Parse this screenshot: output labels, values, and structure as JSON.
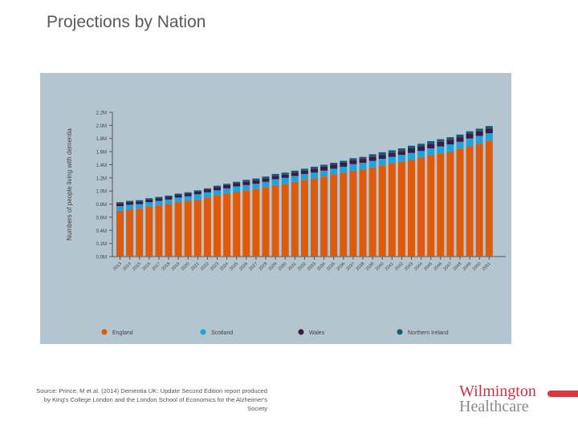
{
  "slide": {
    "title": "Projections by Nation",
    "source": "Source: Prince, M et al. (2014) Dementia UK: Update Second Edition report produced by King's College London and the London School of Economics for the Alzheimer's Society",
    "logo": {
      "line1": "Wilmington",
      "line2": "Healthcare"
    }
  },
  "chart_data": {
    "type": "bar",
    "stacked": true,
    "title": "",
    "xlabel": "",
    "ylabel": "Numbers of people living with dementia",
    "ylim": [
      0,
      2.2
    ],
    "yticks": [
      "0.0M",
      "0.2M",
      "0.4M",
      "0.6M",
      "0.8M",
      "1.0M",
      "1.2M",
      "1.4M",
      "1.6M",
      "1.8M",
      "2.0M",
      "2.2M"
    ],
    "legend_position": "bottom",
    "categories": [
      "2013",
      "2014",
      "2015",
      "2016",
      "2017",
      "2018",
      "2019",
      "2020",
      "2021",
      "2022",
      "2023",
      "2024",
      "2025",
      "2026",
      "2027",
      "2028",
      "2029",
      "2030",
      "2031",
      "2032",
      "2033",
      "2034",
      "2035",
      "2036",
      "2037",
      "2038",
      "2039",
      "2040",
      "2041",
      "2042",
      "2043",
      "2044",
      "2045",
      "2046",
      "2047",
      "2048",
      "2049",
      "2050",
      "2051"
    ],
    "series": [
      {
        "name": "England",
        "color": "#e05a0c",
        "values": [
          0.7,
          0.72,
          0.73,
          0.76,
          0.78,
          0.8,
          0.83,
          0.85,
          0.87,
          0.9,
          0.93,
          0.96,
          0.99,
          1.01,
          1.03,
          1.06,
          1.09,
          1.11,
          1.14,
          1.17,
          1.19,
          1.22,
          1.25,
          1.28,
          1.31,
          1.33,
          1.36,
          1.39,
          1.42,
          1.45,
          1.48,
          1.51,
          1.54,
          1.57,
          1.6,
          1.64,
          1.68,
          1.72,
          1.76
        ]
      },
      {
        "name": "Scotland",
        "color": "#1ea3dc",
        "values": [
          0.07,
          0.07,
          0.07,
          0.07,
          0.07,
          0.07,
          0.07,
          0.07,
          0.08,
          0.08,
          0.08,
          0.08,
          0.08,
          0.08,
          0.08,
          0.08,
          0.09,
          0.09,
          0.09,
          0.09,
          0.09,
          0.09,
          0.09,
          0.09,
          0.1,
          0.1,
          0.1,
          0.1,
          0.1,
          0.1,
          0.1,
          0.1,
          0.11,
          0.11,
          0.11,
          0.11,
          0.12,
          0.12,
          0.12
        ]
      },
      {
        "name": "Wales",
        "color": "#3b1a45",
        "values": [
          0.04,
          0.04,
          0.04,
          0.04,
          0.04,
          0.04,
          0.04,
          0.04,
          0.04,
          0.04,
          0.05,
          0.05,
          0.05,
          0.05,
          0.05,
          0.05,
          0.05,
          0.05,
          0.05,
          0.05,
          0.06,
          0.06,
          0.06,
          0.06,
          0.06,
          0.06,
          0.06,
          0.06,
          0.06,
          0.06,
          0.07,
          0.07,
          0.07,
          0.07,
          0.07,
          0.07,
          0.07,
          0.07,
          0.07
        ]
      },
      {
        "name": "Northern Ireland",
        "color": "#1d5876",
        "values": [
          0.02,
          0.02,
          0.02,
          0.02,
          0.02,
          0.02,
          0.02,
          0.02,
          0.02,
          0.02,
          0.02,
          0.02,
          0.02,
          0.03,
          0.03,
          0.03,
          0.03,
          0.03,
          0.03,
          0.03,
          0.03,
          0.03,
          0.03,
          0.03,
          0.03,
          0.03,
          0.04,
          0.04,
          0.04,
          0.04,
          0.04,
          0.04,
          0.04,
          0.04,
          0.04,
          0.04,
          0.04,
          0.04,
          0.04
        ]
      }
    ]
  }
}
